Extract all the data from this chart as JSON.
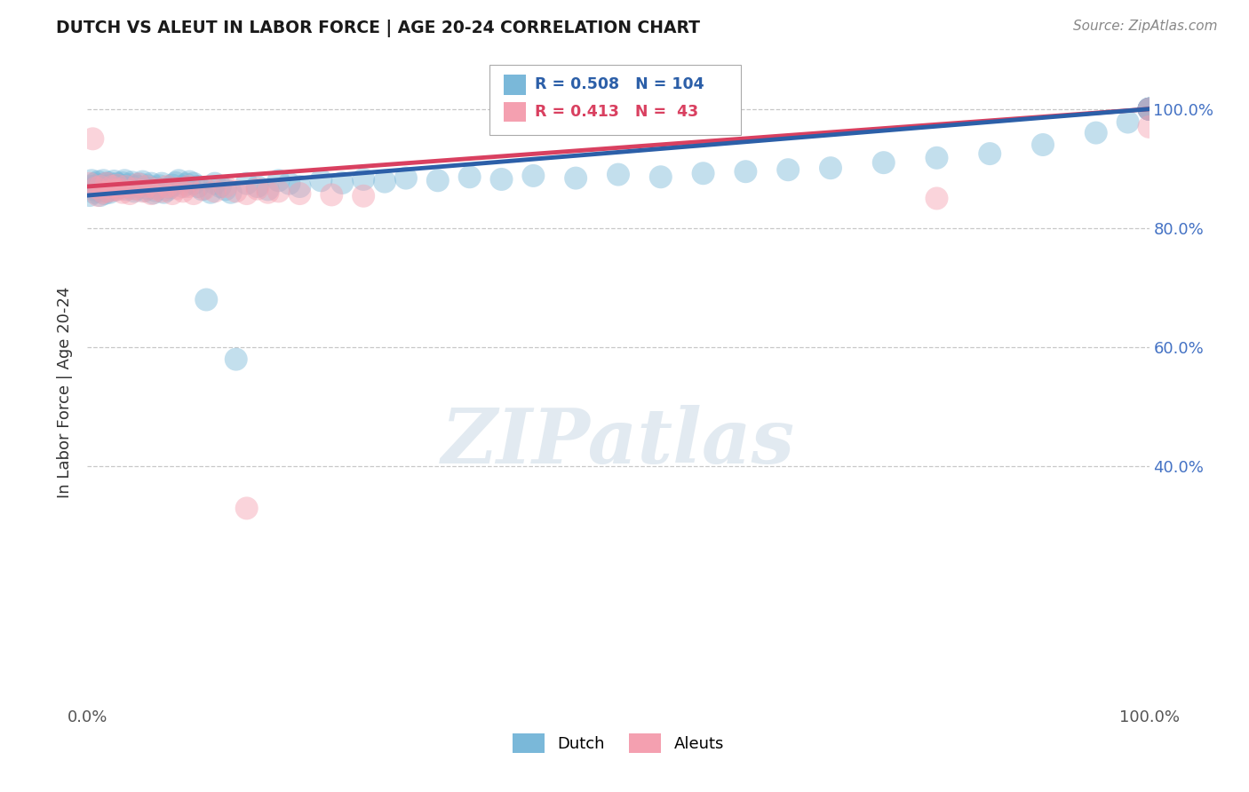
{
  "title": "DUTCH VS ALEUT IN LABOR FORCE | AGE 20-24 CORRELATION CHART",
  "source": "Source: ZipAtlas.com",
  "ylabel": "In Labor Force | Age 20-24",
  "legend_dutch": "Dutch",
  "legend_aleuts": "Aleuts",
  "dutch_R": 0.508,
  "dutch_N": 104,
  "aleut_R": 0.413,
  "aleut_N": 43,
  "dutch_color": "#7ab8d9",
  "aleut_color": "#f4a0b0",
  "dutch_line_color": "#2c5fa8",
  "aleut_line_color": "#d94060",
  "background_color": "#ffffff",
  "grid_color": "#bbbbbb",
  "xlim": [
    0.0,
    1.0
  ],
  "ylim": [
    0.0,
    1.0
  ],
  "yticks": [
    0.4,
    0.6,
    0.8,
    1.0
  ],
  "ytick_labels": [
    "40.0%",
    "60.0%",
    "80.0%",
    "100.0%"
  ],
  "watermark_text": "ZIPatlas",
  "dutch_x": [
    0.002,
    0.003,
    0.004,
    0.005,
    0.006,
    0.007,
    0.008,
    0.009,
    0.01,
    0.011,
    0.012,
    0.013,
    0.014,
    0.015,
    0.016,
    0.017,
    0.018,
    0.019,
    0.02,
    0.021,
    0.022,
    0.023,
    0.024,
    0.025,
    0.026,
    0.027,
    0.028,
    0.03,
    0.031,
    0.033,
    0.035,
    0.037,
    0.038,
    0.04,
    0.042,
    0.044,
    0.046,
    0.048,
    0.05,
    0.052,
    0.054,
    0.056,
    0.058,
    0.06,
    0.062,
    0.064,
    0.066,
    0.068,
    0.07,
    0.072,
    0.075,
    0.078,
    0.08,
    0.083,
    0.086,
    0.09,
    0.093,
    0.096,
    0.1,
    0.104,
    0.108,
    0.112,
    0.116,
    0.12,
    0.125,
    0.13,
    0.135,
    0.14,
    0.15,
    0.16,
    0.17,
    0.18,
    0.19,
    0.2,
    0.22,
    0.24,
    0.26,
    0.28,
    0.3,
    0.33,
    0.36,
    0.39,
    0.42,
    0.46,
    0.5,
    0.54,
    0.58,
    0.62,
    0.66,
    0.7,
    0.75,
    0.8,
    0.85,
    0.9,
    0.95,
    0.98,
    1.0,
    1.0,
    1.0,
    1.0,
    1.0,
    1.0,
    1.0,
    1.0
  ],
  "dutch_y": [
    0.855,
    0.87,
    0.88,
    0.865,
    0.86,
    0.875,
    0.868,
    0.872,
    0.878,
    0.862,
    0.855,
    0.87,
    0.866,
    0.88,
    0.858,
    0.875,
    0.869,
    0.863,
    0.876,
    0.86,
    0.871,
    0.867,
    0.873,
    0.879,
    0.864,
    0.87,
    0.875,
    0.868,
    0.872,
    0.876,
    0.88,
    0.865,
    0.869,
    0.873,
    0.877,
    0.862,
    0.866,
    0.87,
    0.874,
    0.878,
    0.863,
    0.867,
    0.871,
    0.875,
    0.859,
    0.863,
    0.867,
    0.871,
    0.875,
    0.86,
    0.864,
    0.868,
    0.872,
    0.876,
    0.88,
    0.87,
    0.874,
    0.878,
    0.875,
    0.87,
    0.865,
    0.68,
    0.86,
    0.875,
    0.87,
    0.865,
    0.86,
    0.58,
    0.875,
    0.87,
    0.865,
    0.88,
    0.875,
    0.87,
    0.88,
    0.876,
    0.882,
    0.878,
    0.884,
    0.88,
    0.886,
    0.882,
    0.888,
    0.884,
    0.89,
    0.886,
    0.892,
    0.895,
    0.898,
    0.901,
    0.91,
    0.918,
    0.925,
    0.94,
    0.96,
    0.978,
    1.0,
    1.0,
    1.0,
    1.0,
    1.0,
    1.0,
    1.0,
    1.0
  ],
  "aleut_x": [
    0.002,
    0.005,
    0.008,
    0.01,
    0.012,
    0.015,
    0.018,
    0.02,
    0.023,
    0.025,
    0.028,
    0.03,
    0.033,
    0.036,
    0.04,
    0.044,
    0.048,
    0.052,
    0.056,
    0.06,
    0.065,
    0.07,
    0.075,
    0.08,
    0.085,
    0.09,
    0.095,
    0.1,
    0.11,
    0.12,
    0.13,
    0.14,
    0.15,
    0.16,
    0.17,
    0.18,
    0.2,
    0.23,
    0.26,
    0.15,
    0.8,
    1.0,
    1.0
  ],
  "aleut_y": [
    0.875,
    0.95,
    0.868,
    0.855,
    0.87,
    0.86,
    0.875,
    0.862,
    0.87,
    0.864,
    0.872,
    0.865,
    0.86,
    0.87,
    0.858,
    0.866,
    0.874,
    0.862,
    0.87,
    0.858,
    0.866,
    0.862,
    0.87,
    0.858,
    0.867,
    0.862,
    0.87,
    0.858,
    0.866,
    0.862,
    0.87,
    0.862,
    0.858,
    0.866,
    0.86,
    0.862,
    0.858,
    0.856,
    0.854,
    0.33,
    0.85,
    0.97,
    1.0
  ]
}
